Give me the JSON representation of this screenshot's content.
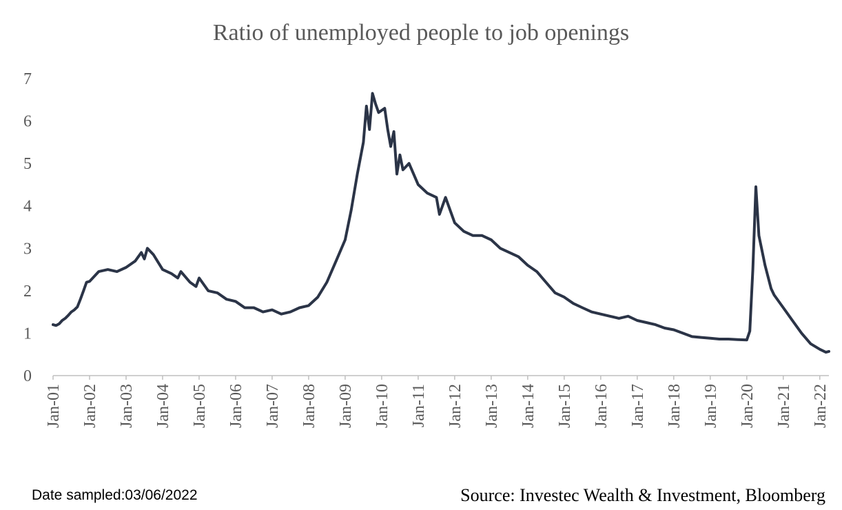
{
  "footer": {
    "date_sampled": "Date sampled:03/06/2022",
    "source": "Source: Investec Wealth & Investment, Bloomberg"
  },
  "chart_data": {
    "type": "line",
    "title": "Ratio of unemployed people to job openings",
    "xlabel": "",
    "ylabel": "",
    "ylim": [
      0,
      7
    ],
    "yticks": [
      "0",
      "1",
      "2",
      "3",
      "4",
      "5",
      "6",
      "7"
    ],
    "xticks": [
      "Jan-01",
      "Jan-02",
      "Jan-03",
      "Jan-04",
      "Jan-05",
      "Jan-06",
      "Jan-07",
      "Jan-08",
      "Jan-09",
      "Jan-10",
      "Jan-11",
      "Jan-12",
      "Jan-13",
      "Jan-14",
      "Jan-15",
      "Jan-16",
      "Jan-17",
      "Jan-18",
      "Jan-19",
      "Jan-20",
      "Jan-21",
      "Jan-22"
    ],
    "x_range": [
      "2001-01",
      "2022-04"
    ],
    "grid": false,
    "legend": "none",
    "line_color": "#2b3447",
    "series": [
      {
        "x": [
          "2001-01",
          "2001-02",
          "2001-03",
          "2001-04",
          "2001-05",
          "2001-06",
          "2001-07",
          "2001-08",
          "2001-09",
          "2001-10",
          "2001-11",
          "2001-12",
          "2002-01",
          "2002-04",
          "2002-07",
          "2002-10",
          "2003-01",
          "2003-04",
          "2003-06",
          "2003-07",
          "2003-08",
          "2003-10",
          "2004-01",
          "2004-04",
          "2004-06",
          "2004-07",
          "2004-10",
          "2004-12",
          "2005-01",
          "2005-04",
          "2005-07",
          "2005-10",
          "2006-01",
          "2006-04",
          "2006-07",
          "2006-10",
          "2007-01",
          "2007-04",
          "2007-07",
          "2007-10",
          "2008-01",
          "2008-04",
          "2008-07",
          "2008-10",
          "2009-01",
          "2009-03",
          "2009-05",
          "2009-07",
          "2009-08",
          "2009-09",
          "2009-10",
          "2009-11",
          "2009-12",
          "2010-02",
          "2010-03",
          "2010-04",
          "2010-05",
          "2010-06",
          "2010-07",
          "2010-08",
          "2010-10",
          "2011-01",
          "2011-04",
          "2011-07",
          "2011-08",
          "2011-10",
          "2012-01",
          "2012-04",
          "2012-07",
          "2012-10",
          "2013-01",
          "2013-04",
          "2013-07",
          "2013-10",
          "2014-01",
          "2014-04",
          "2014-07",
          "2014-10",
          "2015-01",
          "2015-04",
          "2015-07",
          "2015-10",
          "2016-01",
          "2016-04",
          "2016-07",
          "2016-10",
          "2017-01",
          "2017-04",
          "2017-07",
          "2017-10",
          "2018-01",
          "2018-04",
          "2018-07",
          "2018-10",
          "2019-01",
          "2019-04",
          "2019-07",
          "2019-10",
          "2020-01",
          "2020-02",
          "2020-03",
          "2020-04",
          "2020-05",
          "2020-07",
          "2020-09",
          "2020-10",
          "2021-01",
          "2021-04",
          "2021-07",
          "2021-10",
          "2022-01",
          "2022-03",
          "2022-04"
        ],
        "values": [
          1.2,
          1.18,
          1.22,
          1.3,
          1.35,
          1.42,
          1.5,
          1.55,
          1.62,
          1.8,
          2.0,
          2.2,
          2.22,
          2.45,
          2.5,
          2.45,
          2.55,
          2.7,
          2.9,
          2.75,
          3.0,
          2.85,
          2.5,
          2.4,
          2.3,
          2.45,
          2.2,
          2.1,
          2.3,
          2.0,
          1.95,
          1.8,
          1.75,
          1.6,
          1.6,
          1.5,
          1.55,
          1.45,
          1.5,
          1.6,
          1.65,
          1.85,
          2.2,
          2.7,
          3.2,
          3.9,
          4.75,
          5.5,
          6.35,
          5.8,
          6.65,
          6.4,
          6.2,
          6.3,
          5.8,
          5.4,
          5.75,
          4.75,
          5.2,
          4.85,
          5.0,
          4.5,
          4.3,
          4.2,
          3.8,
          4.2,
          3.6,
          3.4,
          3.3,
          3.3,
          3.2,
          3.0,
          2.9,
          2.8,
          2.6,
          2.45,
          2.2,
          1.95,
          1.85,
          1.7,
          1.6,
          1.5,
          1.45,
          1.4,
          1.35,
          1.4,
          1.3,
          1.25,
          1.2,
          1.12,
          1.08,
          1.0,
          0.92,
          0.9,
          0.88,
          0.86,
          0.86,
          0.85,
          0.84,
          1.05,
          2.5,
          4.45,
          3.3,
          2.6,
          2.05,
          1.9,
          1.6,
          1.3,
          1.0,
          0.75,
          0.62,
          0.55,
          0.57
        ]
      }
    ]
  }
}
